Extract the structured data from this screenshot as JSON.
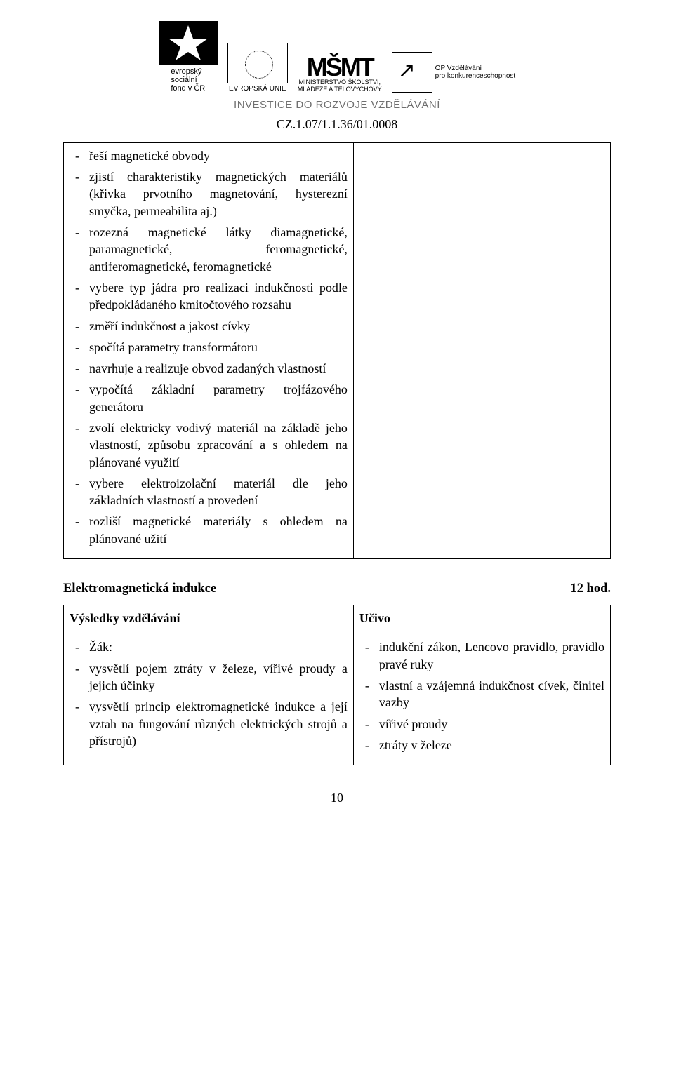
{
  "header": {
    "esf_line1": "evropský",
    "esf_line2": "sociální",
    "esf_line3": "fond v ČR",
    "eu_caption": "EVROPSKÁ UNIE",
    "msmt_logo": "MŠMT",
    "msmt_line1": "MINISTERSTVO ŠKOLSTVÍ,",
    "msmt_line2": "MLÁDEŽE A TĚLOVÝCHOVY",
    "op_line1": "OP Vzdělávání",
    "op_line2": "pro konkurenceschopnost",
    "invest": "INVESTICE DO ROZVOJE VZDĚLÁVÁNÍ",
    "code": "CZ.1.07/1.1.36/01.0008"
  },
  "top_cell_items": [
    "řeší magnetické obvody",
    "zjistí charakteristiky magnetických materiálů (křivka prvotního magnetování, hysterezní smyčka, permeabilita aj.)",
    "rozezná magnetické látky diamagnetické, paramagnetické, feromagnetické, antiferomagnetické, feromagnetické",
    "vybere typ jádra pro realizaci indukčnosti podle předpokládaného kmitočtového rozsahu",
    "změří indukčnost a jakost cívky",
    "spočítá parametry transformátoru",
    "navrhuje a realizuje obvod zadaných vlastností",
    "vypočítá základní parametry trojfázového generátoru",
    "zvolí elektricky vodivý materiál na základě jeho vlastností, způsobu zpracování a s ohledem na plánované využití",
    "vybere elektroizolační materiál dle jeho základních vlastností a provedení",
    "rozliší magnetické materiály s ohledem na plánované užití"
  ],
  "section2": {
    "title": "Elektromagnetická indukce",
    "hours": "12 hod.",
    "left_header": "Výsledky vzdělávání",
    "right_header": "Učivo",
    "left_items": [
      "Žák:",
      "vysvětlí pojem ztráty v železe, vířivé proudy a jejich účinky",
      "vysvětlí princip elektromagnetické indukce a její vztah na fungování různých elektrických strojů a přístrojů)"
    ],
    "right_items": [
      "indukční zákon, Lencovo pravidlo, pravidlo pravé ruky",
      "vlastní a vzájemná indukčnost cívek, činitel vazby",
      "vířivé proudy",
      "ztráty v železe"
    ]
  },
  "page_number": "10"
}
